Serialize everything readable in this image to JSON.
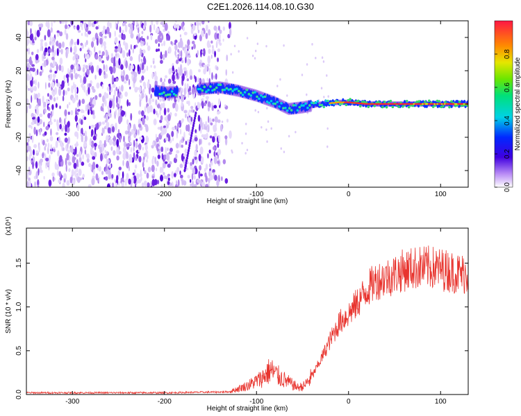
{
  "page": {
    "title": "C2E1.2026.114.08.10.G30"
  },
  "chart_data": [
    {
      "id": "spectrogram",
      "type": "heatmap",
      "xlabel": "Height of straight line (km)",
      "ylabel": "Frequency (Hz)",
      "xlim": [
        -350,
        130
      ],
      "ylim": [
        -50,
        50
      ],
      "xticks": [
        {
          "v": -300,
          "label": "-300"
        },
        {
          "v": -200,
          "label": "-200"
        },
        {
          "v": -100,
          "label": "-100"
        },
        {
          "v": 0,
          "label": "0"
        },
        {
          "v": 100,
          "label": "100"
        }
      ],
      "yticks": [
        {
          "v": 40,
          "label": "40"
        },
        {
          "v": 20,
          "label": "20"
        },
        {
          "v": 0,
          "label": "0"
        },
        {
          "v": -20,
          "label": "-20"
        },
        {
          "v": -40,
          "label": "-40"
        }
      ],
      "colorbar": {
        "label": "Normalized spectral amplitude",
        "range": [
          0,
          1
        ],
        "ticks": [
          {
            "v": 0.0,
            "label": "0.0"
          },
          {
            "v": 0.2,
            "label": "0.2"
          },
          {
            "v": 0.4,
            "label": "0.4"
          },
          {
            "v": 0.6,
            "label": "0.6"
          },
          {
            "v": 0.8,
            "label": "0.8"
          }
        ]
      },
      "noise_region_x": [
        -350,
        -140
      ],
      "trace": [
        {
          "x": -210,
          "y": 8
        },
        {
          "x": -200,
          "y": 7
        },
        {
          "x": -190,
          "y": 7
        },
        {
          "x": -160,
          "y": 9
        },
        {
          "x": -140,
          "y": 10
        },
        {
          "x": -120,
          "y": 8
        },
        {
          "x": -100,
          "y": 5
        },
        {
          "x": -80,
          "y": 1
        },
        {
          "x": -65,
          "y": -3
        },
        {
          "x": -50,
          "y": -2
        },
        {
          "x": -30,
          "y": 0
        },
        {
          "x": -10,
          "y": 1
        },
        {
          "x": 0,
          "y": 1
        },
        {
          "x": 20,
          "y": 0
        },
        {
          "x": 60,
          "y": 0
        },
        {
          "x": 100,
          "y": 0
        },
        {
          "x": 130,
          "y": 0
        }
      ]
    },
    {
      "id": "snr",
      "type": "line",
      "xlabel": "Height of straight line (km)",
      "ylabel": "SNR (10 * v/v)",
      "scale_label": "(x10⁴)",
      "xlim": [
        -350,
        130
      ],
      "ylim": [
        0,
        1.9
      ],
      "color": "#e8342e",
      "xticks": [
        {
          "v": -300,
          "label": "-300"
        },
        {
          "v": -200,
          "label": "-200"
        },
        {
          "v": -100,
          "label": "-100"
        },
        {
          "v": 0,
          "label": "0"
        },
        {
          "v": 100,
          "label": "100"
        }
      ],
      "yticks": [
        {
          "v": 0.0,
          "label": "0.0"
        },
        {
          "v": 0.5,
          "label": "0.5"
        },
        {
          "v": 1.0,
          "label": "1.0"
        },
        {
          "v": 1.5,
          "label": "1.5"
        }
      ],
      "envelope": [
        {
          "x": -350,
          "y": 0.02
        },
        {
          "x": -200,
          "y": 0.02
        },
        {
          "x": -130,
          "y": 0.03
        },
        {
          "x": -110,
          "y": 0.1
        },
        {
          "x": -95,
          "y": 0.18
        },
        {
          "x": -85,
          "y": 0.28
        },
        {
          "x": -75,
          "y": 0.2
        },
        {
          "x": -62,
          "y": 0.12
        },
        {
          "x": -55,
          "y": 0.08
        },
        {
          "x": -48,
          "y": 0.1
        },
        {
          "x": -40,
          "y": 0.2
        },
        {
          "x": -30,
          "y": 0.4
        },
        {
          "x": -20,
          "y": 0.62
        },
        {
          "x": -10,
          "y": 0.82
        },
        {
          "x": 0,
          "y": 0.92
        },
        {
          "x": 10,
          "y": 1.05
        },
        {
          "x": 20,
          "y": 1.2
        },
        {
          "x": 30,
          "y": 1.3
        },
        {
          "x": 45,
          "y": 1.35
        },
        {
          "x": 60,
          "y": 1.42
        },
        {
          "x": 75,
          "y": 1.45
        },
        {
          "x": 90,
          "y": 1.45
        },
        {
          "x": 105,
          "y": 1.42
        },
        {
          "x": 120,
          "y": 1.38
        },
        {
          "x": 130,
          "y": 1.38
        }
      ]
    }
  ]
}
